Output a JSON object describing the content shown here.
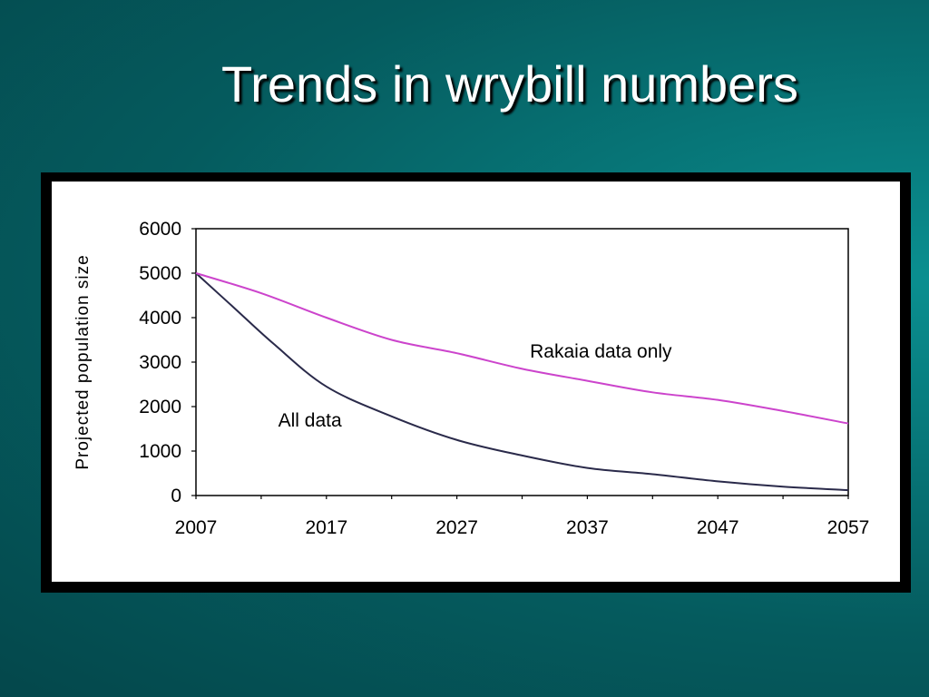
{
  "slide": {
    "title": "Trends in wrybill numbers"
  },
  "chart_data": {
    "type": "line",
    "title": "",
    "xlabel": "",
    "ylabel": "Projected population size",
    "xlim": [
      2007,
      2057
    ],
    "ylim": [
      0,
      6000
    ],
    "x_ticks": [
      2007,
      2017,
      2027,
      2037,
      2047,
      2057
    ],
    "y_ticks": [
      0,
      1000,
      2000,
      3000,
      4000,
      5000,
      6000
    ],
    "x_tick_labels": [
      "2007",
      "2017",
      "2027",
      "2037",
      "2047",
      "2057"
    ],
    "y_tick_labels": [
      "0",
      "1000",
      "2000",
      "3000",
      "4000",
      "5000",
      "6000"
    ],
    "grid": false,
    "series": [
      {
        "name": "All data",
        "color": "#2a2a4a",
        "x": [
          2007,
          2010,
          2013,
          2017,
          2022,
          2027,
          2032,
          2037,
          2042,
          2047,
          2052,
          2057
        ],
        "y": [
          5000,
          4200,
          3400,
          2450,
          1780,
          1250,
          900,
          620,
          480,
          320,
          200,
          120
        ]
      },
      {
        "name": "Rakaia data only",
        "color": "#cc44cc",
        "x": [
          2007,
          2012,
          2017,
          2022,
          2027,
          2032,
          2037,
          2042,
          2047,
          2052,
          2057
        ],
        "y": [
          5000,
          4550,
          4000,
          3500,
          3200,
          2850,
          2580,
          2320,
          2150,
          1900,
          1620
        ]
      }
    ],
    "annotations": [
      {
        "text": "All data",
        "series": "All data"
      },
      {
        "text": "Rakaia data only",
        "series": "Rakaia data only"
      }
    ]
  }
}
